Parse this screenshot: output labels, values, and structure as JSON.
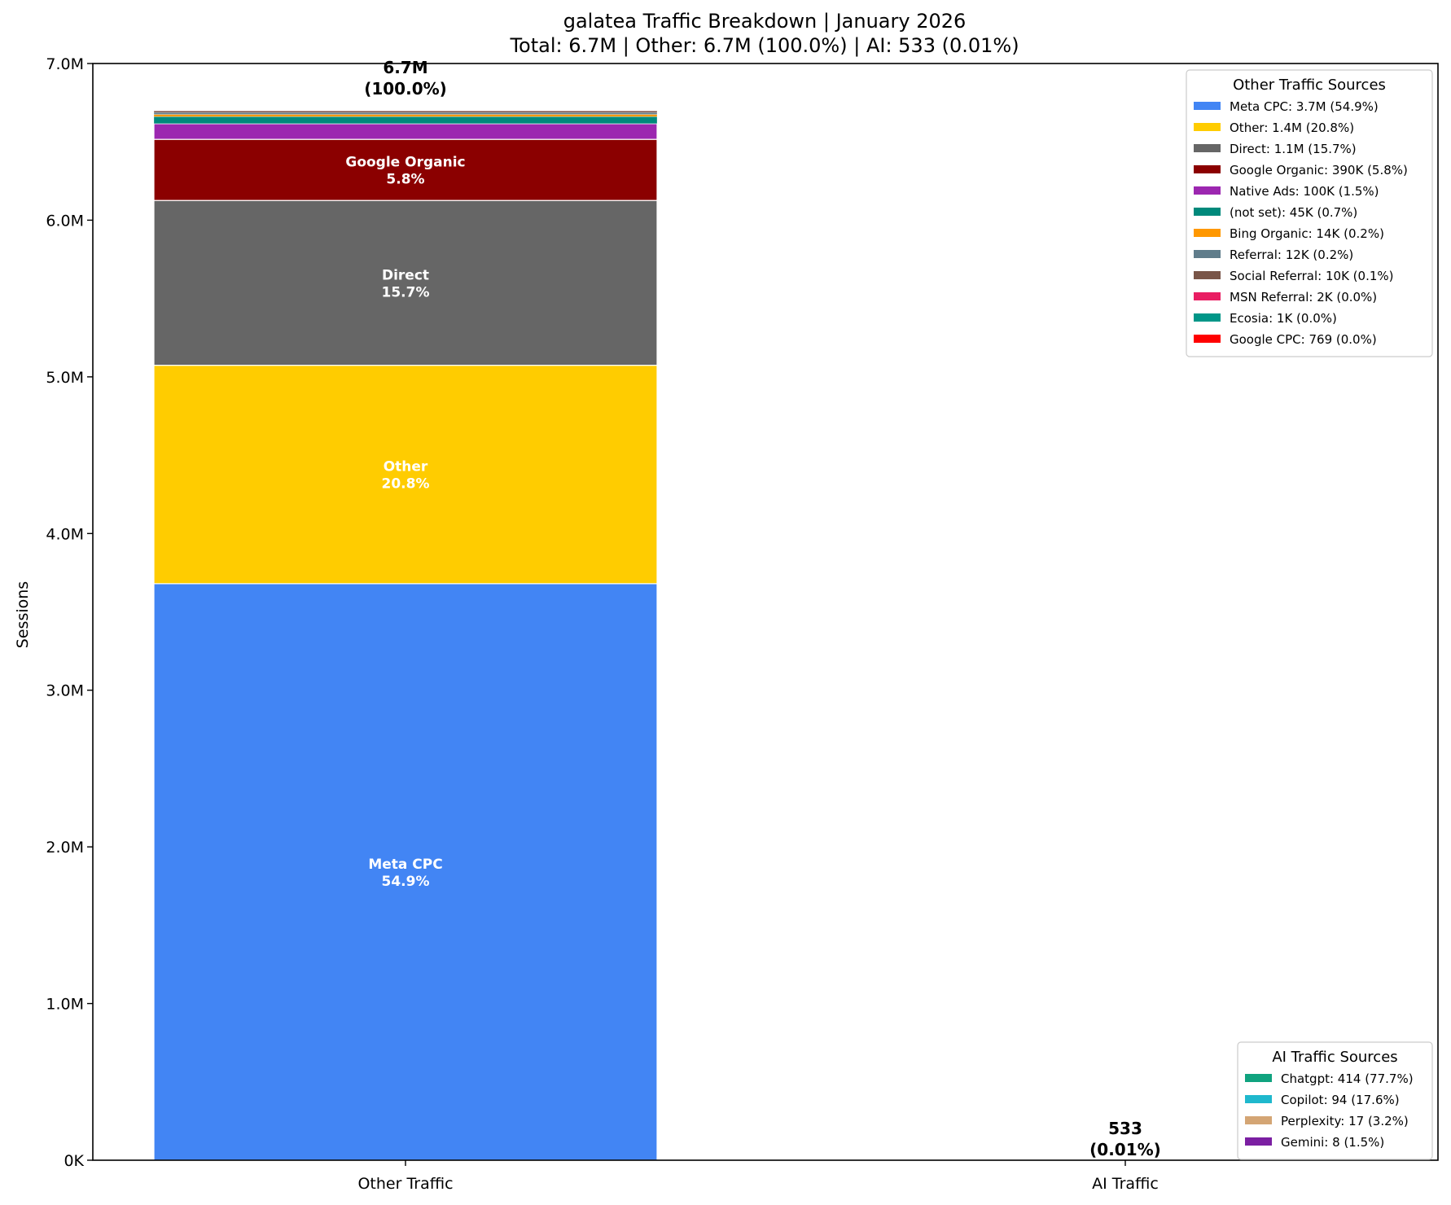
{
  "chart_data": {
    "type": "bar",
    "stacked": true,
    "title": "galatea Traffic Breakdown | January 2026",
    "subtitle": "Total: 6.7M | Other: 6.7M (100.0%) | AI: 533 (0.01%)",
    "xlabel": "",
    "ylabel": "Sessions",
    "ylim": [
      0,
      7000000
    ],
    "yticks": [
      0,
      1000000,
      2000000,
      3000000,
      4000000,
      5000000,
      6000000,
      7000000
    ],
    "ytick_labels": [
      "0K",
      "1.0M",
      "2.0M",
      "3.0M",
      "4.0M",
      "5.0M",
      "6.0M",
      "7.0M"
    ],
    "categories": [
      "Other Traffic",
      "AI Traffic"
    ],
    "totals": [
      {
        "value_label": "6.7M",
        "pct_label": "(100.0%)"
      },
      {
        "value_label": "533",
        "pct_label": "(0.01%)"
      }
    ],
    "grid": false,
    "other_series": [
      {
        "name": "Meta CPC",
        "value": 3680000,
        "pct": "54.9%",
        "legend": "Meta CPC: 3.7M (54.9%)",
        "color": "#4285F4",
        "inbar_label": "Meta CPC"
      },
      {
        "name": "Other",
        "value": 1394000,
        "pct": "20.8%",
        "legend": "Other: 1.4M (20.8%)",
        "color": "#FFCC00",
        "inbar_label": "Other"
      },
      {
        "name": "Direct",
        "value": 1052000,
        "pct": "15.7%",
        "legend": "Direct: 1.1M (15.7%)",
        "color": "#666666",
        "inbar_label": "Direct"
      },
      {
        "name": "Google Organic",
        "value": 390000,
        "pct": "5.8%",
        "legend": "Google Organic: 390K (5.8%)",
        "color": "#8B0000",
        "inbar_label": "Google Organic"
      },
      {
        "name": "Native Ads",
        "value": 100000,
        "pct": "1.5%",
        "legend": "Native Ads: 100K (1.5%)",
        "color": "#9C27B0"
      },
      {
        "name": "(not set)",
        "value": 45000,
        "pct": "0.7%",
        "legend": "(not set): 45K (0.7%)",
        "color": "#00897B"
      },
      {
        "name": "Bing Organic",
        "value": 14000,
        "pct": "0.2%",
        "legend": "Bing Organic: 14K (0.2%)",
        "color": "#FF9800"
      },
      {
        "name": "Referral",
        "value": 12000,
        "pct": "0.2%",
        "legend": "Referral: 12K (0.2%)",
        "color": "#607D8B"
      },
      {
        "name": "Social Referral",
        "value": 10000,
        "pct": "0.1%",
        "legend": "Social Referral: 10K (0.1%)",
        "color": "#795548"
      },
      {
        "name": "MSN Referral",
        "value": 2000,
        "pct": "0.0%",
        "legend": "MSN Referral: 2K (0.0%)",
        "color": "#E91E63"
      },
      {
        "name": "Ecosia",
        "value": 1000,
        "pct": "0.0%",
        "legend": "Ecosia: 1K (0.0%)",
        "color": "#009688"
      },
      {
        "name": "Google CPC",
        "value": 769,
        "pct": "0.0%",
        "legend": "Google CPC: 769 (0.0%)",
        "color": "#FF0000"
      }
    ],
    "ai_series": [
      {
        "name": "Chatgpt",
        "value": 414,
        "pct": "77.7%",
        "legend": "Chatgpt: 414 (77.7%)",
        "color": "#10A37F"
      },
      {
        "name": "Copilot",
        "value": 94,
        "pct": "17.6%",
        "legend": "Copilot: 94 (17.6%)",
        "color": "#1FB8CD"
      },
      {
        "name": "Perplexity",
        "value": 17,
        "pct": "3.2%",
        "legend": "Perplexity: 17 (3.2%)",
        "color": "#D4A574"
      },
      {
        "name": "Gemini",
        "value": 8,
        "pct": "1.5%",
        "legend": "Gemini: 8 (1.5%)",
        "color": "#7B1FA2"
      }
    ],
    "legends": [
      {
        "title": "Other Traffic Sources",
        "placement": "top-right"
      },
      {
        "title": "AI Traffic Sources",
        "placement": "bottom-right"
      }
    ]
  }
}
